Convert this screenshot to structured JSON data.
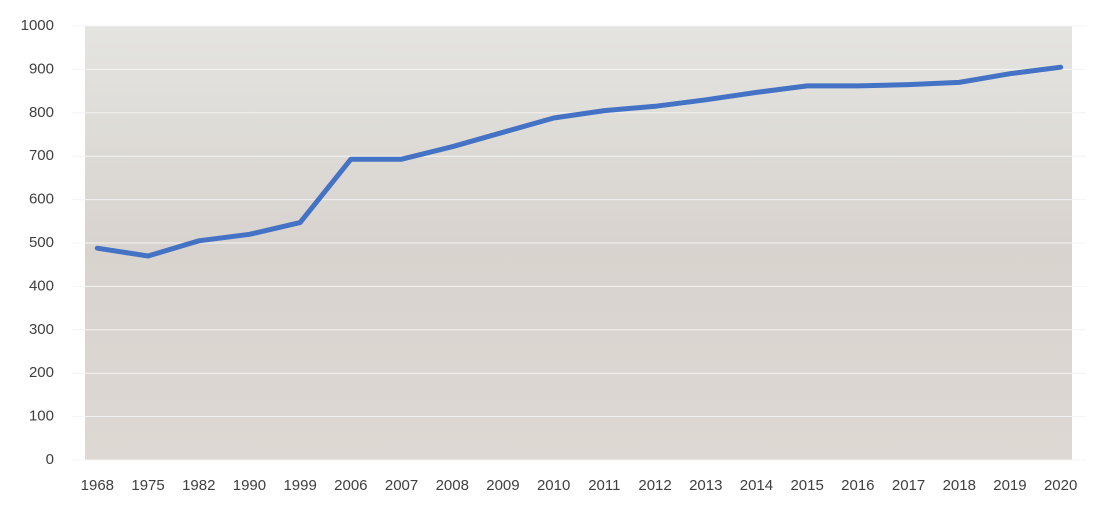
{
  "chart_data": {
    "type": "line",
    "categories": [
      "1968",
      "1975",
      "1982",
      "1990",
      "1999",
      "2006",
      "2007",
      "2008",
      "2009",
      "2010",
      "2011",
      "2012",
      "2013",
      "2014",
      "2015",
      "2016",
      "2017",
      "2018",
      "2019",
      "2020"
    ],
    "values": [
      488,
      470,
      505,
      520,
      547,
      693,
      693,
      722,
      755,
      788,
      805,
      815,
      830,
      847,
      862,
      862,
      865,
      870,
      890,
      905
    ],
    "color": "#4472c4",
    "ylim": [
      0,
      1000
    ],
    "yticks": [
      0,
      100,
      200,
      300,
      400,
      500,
      600,
      700,
      800,
      900,
      1000
    ],
    "grid": true
  }
}
